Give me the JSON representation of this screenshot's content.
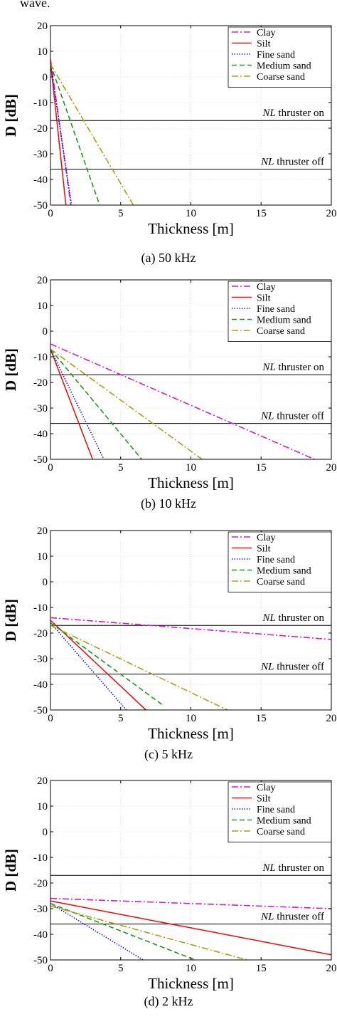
{
  "top_text": "wave.",
  "style": {
    "colors": {
      "Clay": "#d21ec8",
      "Silt": "#e01818",
      "Fine sand": "#1a1acc",
      "Medium sand": "#1a9a1a",
      "Coarse sand": "#a8a01a"
    },
    "dashes": {
      "Clay": "9,3,2,3",
      "Silt": "",
      "Fine sand": "1.5,2",
      "Medium sand": "7,4",
      "Coarse sand": "9,3,2,3"
    }
  },
  "chart_data": [
    {
      "type": "line",
      "caption": "(a) 50 kHz",
      "xlabel": "Thickness [m]",
      "ylabel": "D [dB]",
      "xlim": [
        0,
        20
      ],
      "ylim": [
        -50,
        20
      ],
      "xticks": [
        "0",
        "5",
        "10",
        "15",
        "20"
      ],
      "yticks": [
        "20",
        "10",
        "0",
        "-10",
        "-20",
        "-30",
        "-40",
        "-50"
      ],
      "grid": true,
      "legend_position": "top-right",
      "series": [
        {
          "name": "Clay",
          "x": [
            0,
            1.45
          ],
          "y": [
            7,
            -50
          ]
        },
        {
          "name": "Silt",
          "x": [
            0,
            1.1
          ],
          "y": [
            6,
            -50
          ]
        },
        {
          "name": "Fine sand",
          "x": [
            0,
            1.5
          ],
          "y": [
            5,
            -50
          ]
        },
        {
          "name": "Medium sand",
          "x": [
            0,
            3.5
          ],
          "y": [
            5,
            -50
          ]
        },
        {
          "name": "Coarse sand",
          "x": [
            0,
            5.9
          ],
          "y": [
            5,
            -50
          ]
        }
      ],
      "thresholds": [
        {
          "label_prefix": "NL",
          "label_suffix": " thruster on",
          "y": -17
        },
        {
          "label_prefix": "NL",
          "label_suffix": " thruster off",
          "y": -36
        }
      ]
    },
    {
      "type": "line",
      "caption": "(b) 10 kHz",
      "xlabel": "Thickness [m]",
      "ylabel": "D [dB]",
      "xlim": [
        0,
        20
      ],
      "ylim": [
        -50,
        20
      ],
      "xticks": [
        "0",
        "5",
        "10",
        "15",
        "20"
      ],
      "yticks": [
        "20",
        "10",
        "0",
        "-10",
        "-20",
        "-30",
        "-40",
        "-50"
      ],
      "grid": true,
      "legend_position": "top-right",
      "series": [
        {
          "name": "Clay",
          "x": [
            0,
            18.8
          ],
          "y": [
            -5,
            -50
          ]
        },
        {
          "name": "Silt",
          "x": [
            0,
            3.0
          ],
          "y": [
            -7,
            -50
          ]
        },
        {
          "name": "Fine sand",
          "x": [
            0,
            3.8
          ],
          "y": [
            -7,
            -50
          ]
        },
        {
          "name": "Medium sand",
          "x": [
            0,
            6.5
          ],
          "y": [
            -7,
            -50
          ]
        },
        {
          "name": "Coarse sand",
          "x": [
            0,
            10.8
          ],
          "y": [
            -7,
            -50
          ]
        }
      ],
      "thresholds": [
        {
          "label_prefix": "NL",
          "label_suffix": " thruster on",
          "y": -17
        },
        {
          "label_prefix": "NL",
          "label_suffix": " thruster off",
          "y": -36
        }
      ]
    },
    {
      "type": "line",
      "caption": "(c) 5 kHz",
      "xlabel": "Thickness [m]",
      "ylabel": "D [dB]",
      "xlim": [
        0,
        20
      ],
      "ylim": [
        -50,
        20
      ],
      "xticks": [
        "0",
        "5",
        "10",
        "15",
        "20"
      ],
      "yticks": [
        "20",
        "10",
        "0",
        "-10",
        "-20",
        "-30",
        "-40",
        "-50"
      ],
      "grid": true,
      "legend_position": "top-right",
      "series": [
        {
          "name": "Clay",
          "x": [
            0,
            20
          ],
          "y": [
            -14,
            -22.5
          ]
        },
        {
          "name": "Silt",
          "x": [
            0,
            6.8
          ],
          "y": [
            -15,
            -50
          ]
        },
        {
          "name": "Fine sand",
          "x": [
            0,
            5.4
          ],
          "y": [
            -16,
            -50
          ]
        },
        {
          "name": "Medium sand",
          "x": [
            0,
            8.1
          ],
          "y": [
            -16,
            -48.5
          ]
        },
        {
          "name": "Coarse sand",
          "x": [
            0,
            12.6
          ],
          "y": [
            -17,
            -50
          ]
        }
      ],
      "thresholds": [
        {
          "label_prefix": "NL",
          "label_suffix": " thruster on",
          "y": -17
        },
        {
          "label_prefix": "NL",
          "label_suffix": " thruster off",
          "y": -36
        }
      ]
    },
    {
      "type": "line",
      "caption": "(d) 2 kHz",
      "xlabel": "Thickness [m]",
      "ylabel": "D [dB]",
      "xlim": [
        0,
        20
      ],
      "ylim": [
        -50,
        20
      ],
      "xticks": [
        "0",
        "5",
        "10",
        "15",
        "20"
      ],
      "yticks": [
        "20",
        "10",
        "0",
        "-10",
        "-20",
        "-30",
        "-40",
        "-50"
      ],
      "grid": true,
      "legend_position": "top-right",
      "series": [
        {
          "name": "Clay",
          "x": [
            0,
            20
          ],
          "y": [
            -26,
            -30
          ]
        },
        {
          "name": "Silt",
          "x": [
            0,
            20
          ],
          "y": [
            -27,
            -48
          ]
        },
        {
          "name": "Fine sand",
          "x": [
            0,
            6.6
          ],
          "y": [
            -28,
            -50
          ]
        },
        {
          "name": "Medium sand",
          "x": [
            0,
            10.3
          ],
          "y": [
            -28,
            -50
          ]
        },
        {
          "name": "Coarse sand",
          "x": [
            0,
            14
          ],
          "y": [
            -29,
            -50
          ]
        }
      ],
      "thresholds": [
        {
          "label_prefix": "NL",
          "label_suffix": " thruster on",
          "y": -17
        },
        {
          "label_prefix": "NL",
          "label_suffix": " thruster off",
          "y": -36
        }
      ]
    }
  ]
}
